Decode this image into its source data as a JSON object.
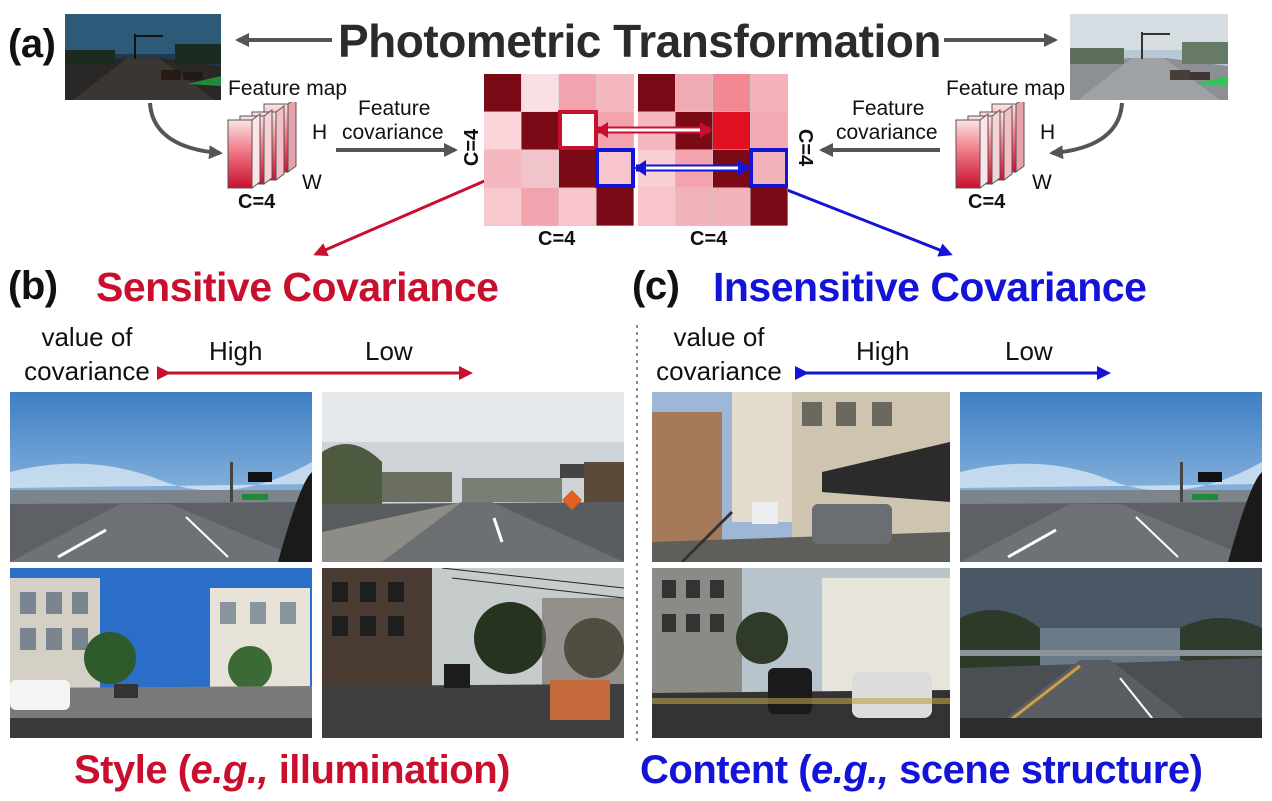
{
  "header": {
    "label_a": "(a)",
    "title": "Photometric Transformation"
  },
  "feature_left": {
    "title": "Feature map",
    "h": "H",
    "w": "W",
    "c": "C=4",
    "cov_label_line1": "Feature",
    "cov_label_line2": "covariance"
  },
  "feature_right": {
    "title": "Feature map",
    "h": "H",
    "w": "W",
    "c": "C=4",
    "cov_label_line1": "Feature",
    "cov_label_line2": "covariance"
  },
  "matrix": {
    "left_side_label": "C=4",
    "right_side_label": "C=4",
    "bottom_left_label": "C=4",
    "bottom_right_label": "C=4",
    "left_cells": [
      [
        "#7a0a15",
        "#fbe0e3",
        "#f2a3ad",
        "#f5b8c0"
      ],
      [
        "#fbd5da",
        "#7a0a15",
        "#ffffff",
        "#f2a3ad"
      ],
      [
        "#f5b8c0",
        "#f0c4ca",
        "#7a0a15",
        "#f7c5cb"
      ],
      [
        "#f7c9ce",
        "#f2a3ad",
        "#f7c5cb",
        "#7a0a15"
      ]
    ],
    "right_cells": [
      [
        "#7a0a15",
        "#f0aab3",
        "#f48892",
        "#f5b0b8"
      ],
      [
        "#f5b8c0",
        "#7a0a15",
        "#e01020",
        "#f3a9b1"
      ],
      [
        "#f9cfd4",
        "#f2a3ad",
        "#7a0a15",
        "#f2b2ba"
      ],
      [
        "#f7c5cb",
        "#f2b2ba",
        "#f2b2ba",
        "#7a0a15"
      ]
    ]
  },
  "section_b": {
    "label": "(b)",
    "title": "Sensitive Covariance",
    "title_color": "#c8102e",
    "value_line1": "value of",
    "value_line2": "covariance",
    "high": "High",
    "low": "Low",
    "caption_pre": "Style (",
    "caption_em": "e.g.,",
    "caption_post": " illumination)",
    "color": "#c8102e"
  },
  "section_c": {
    "label": "(c)",
    "title": "Insensitive Covariance",
    "title_color": "#1414d8",
    "value_line1": "value of",
    "value_line2": "covariance",
    "high": "High",
    "low": "Low",
    "caption_pre": "Content (",
    "caption_em": "e.g.,",
    "caption_post": " scene structure)",
    "color": "#1414d8"
  }
}
